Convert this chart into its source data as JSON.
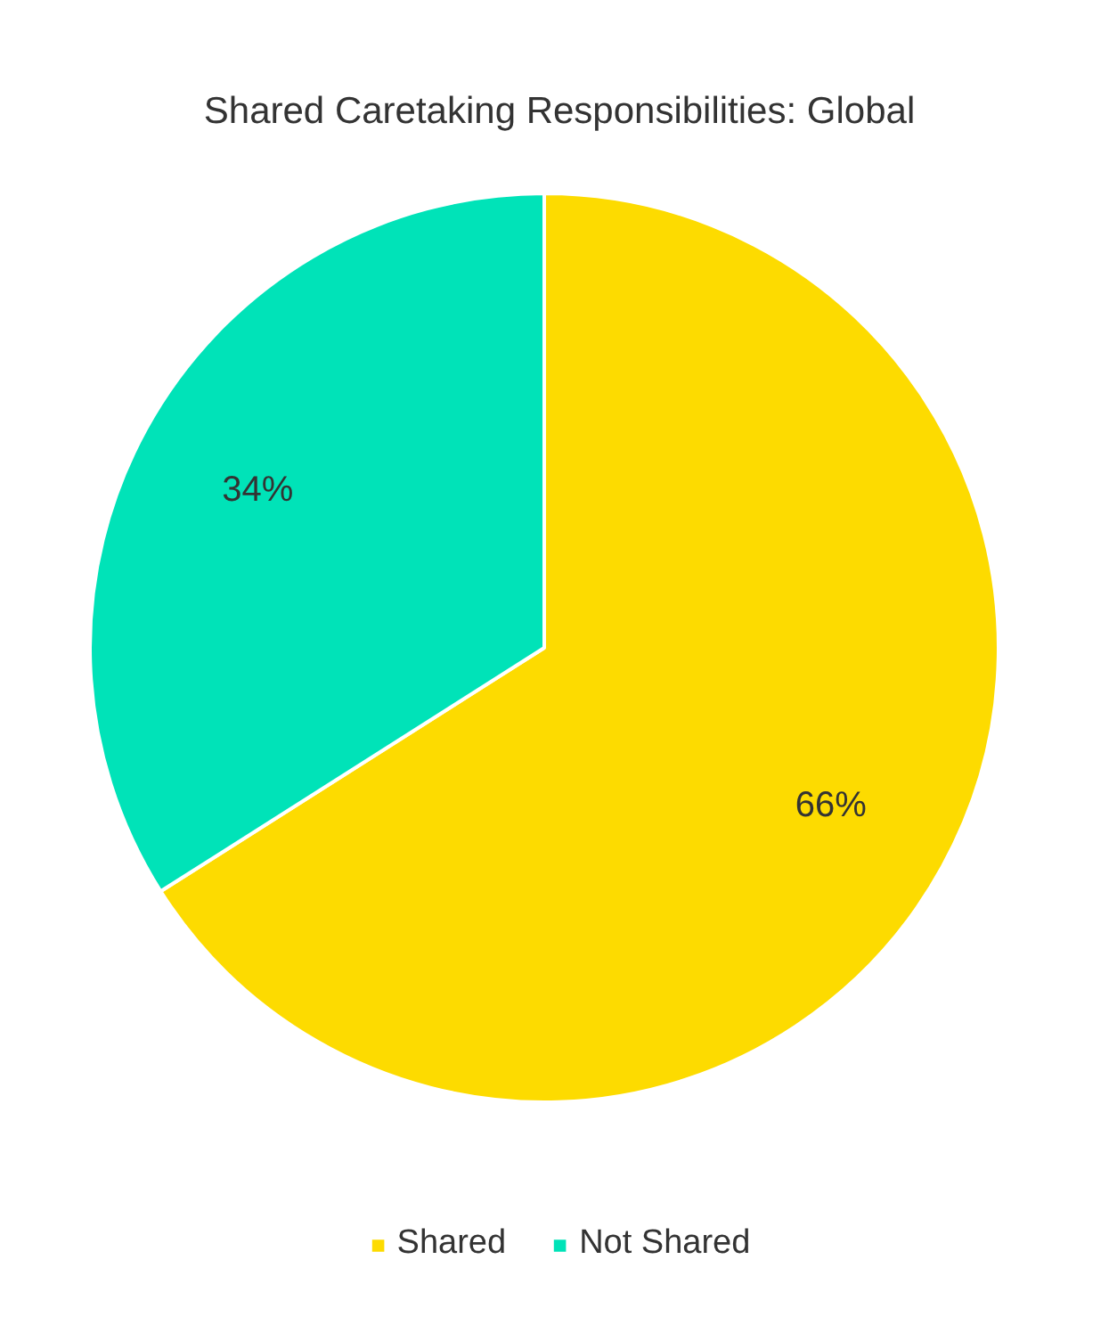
{
  "chart_data": {
    "type": "pie",
    "title": "Shared Caretaking Responsibilities: Global",
    "categories": [
      "Shared",
      "Not Shared"
    ],
    "values": [
      66,
      34
    ],
    "colors": [
      "#fddb00",
      "#00e3b8"
    ],
    "value_labels": [
      "66%",
      "34%"
    ],
    "legend": "bottom"
  }
}
